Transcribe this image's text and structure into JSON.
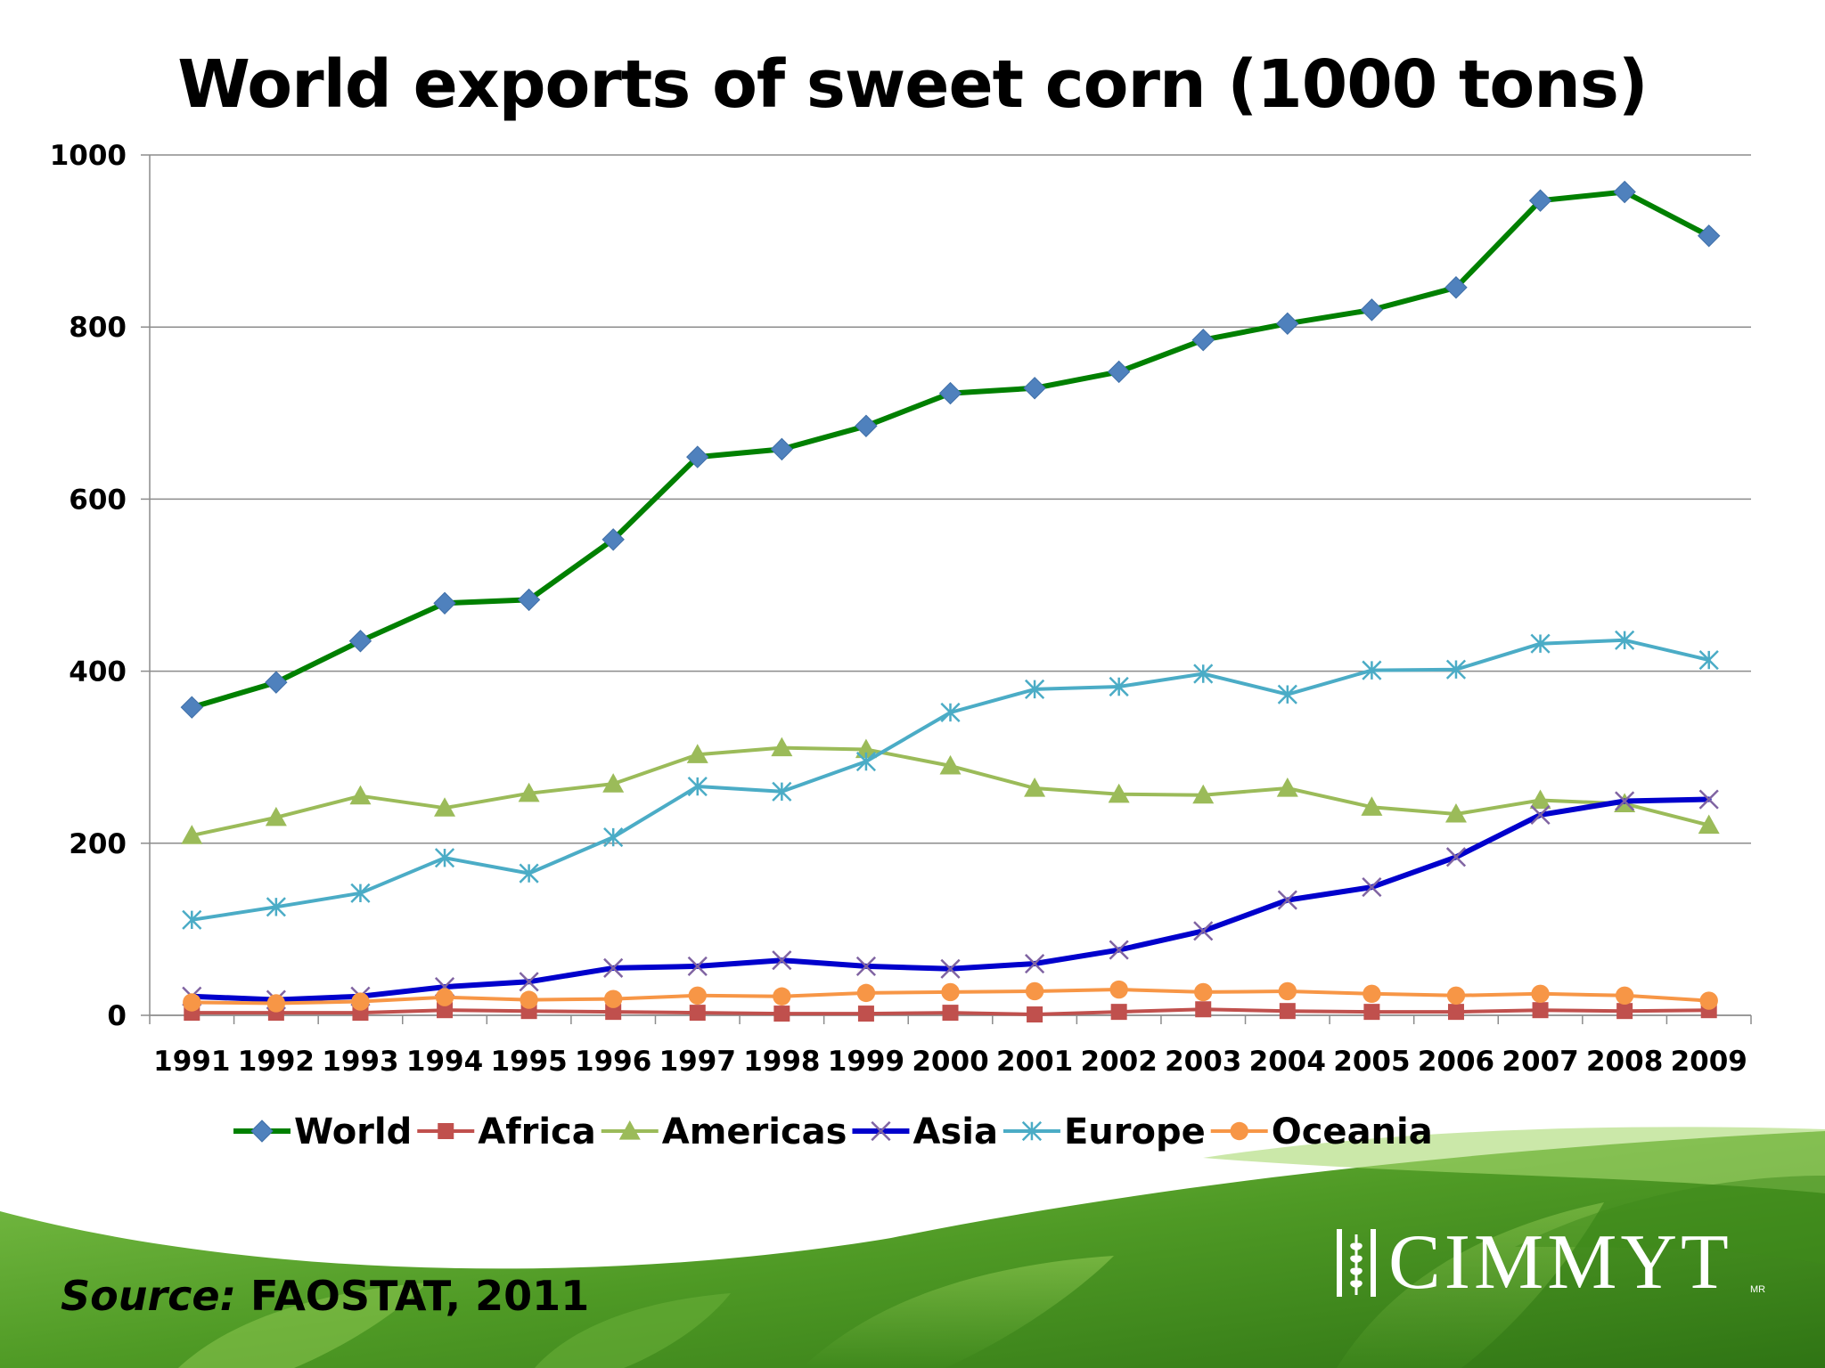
{
  "slide": {
    "title": "World exports of sweet corn (1000 tons)",
    "source_label": "Source:",
    "source_text": "FAOSTAT, 2011",
    "logo_text": "CIMMYT",
    "logo_mark": "MR",
    "colors": {
      "background_green": "#4e9a2a",
      "text": "#000000"
    }
  },
  "chart_data": {
    "type": "line",
    "title": "World exports of sweet corn (1000 tons)",
    "xlabel": "",
    "ylabel": "",
    "ylim": [
      0,
      1000
    ],
    "yticks": [
      0,
      200,
      400,
      600,
      800,
      1000
    ],
    "grid": true,
    "legend_position": "bottom",
    "categories": [
      "1991",
      "1992",
      "1993",
      "1994",
      "1995",
      "1996",
      "1997",
      "1998",
      "1999",
      "2000",
      "2001",
      "2002",
      "2003",
      "2004",
      "2005",
      "2006",
      "2007",
      "2008",
      "2009"
    ],
    "series": [
      {
        "name": "World",
        "color": "#008000",
        "marker": "diamond",
        "marker_color": "#4f81bd",
        "values": [
          358,
          387,
          435,
          479,
          483,
          553,
          649,
          658,
          685,
          723,
          729,
          748,
          785,
          804,
          820,
          846,
          947,
          957,
          906
        ]
      },
      {
        "name": "Africa",
        "color": "#c0504d",
        "marker": "square",
        "marker_color": "#c0504d",
        "values": [
          3,
          3,
          3,
          6,
          5,
          4,
          3,
          2,
          2,
          3,
          1,
          4,
          7,
          5,
          4,
          4,
          6,
          5,
          6
        ]
      },
      {
        "name": "Americas",
        "color": "#9bbb59",
        "marker": "triangle",
        "marker_color": "#9bbb59",
        "values": [
          209,
          230,
          255,
          241,
          258,
          269,
          303,
          311,
          309,
          290,
          264,
          257,
          256,
          264,
          242,
          234,
          250,
          246,
          221
        ]
      },
      {
        "name": "Asia",
        "color": "#0000cc",
        "marker": "x",
        "marker_color": "#8064a2",
        "values": [
          22,
          18,
          22,
          33,
          39,
          55,
          57,
          64,
          57,
          54,
          60,
          76,
          98,
          134,
          149,
          184,
          233,
          249,
          251
        ]
      },
      {
        "name": "Europe",
        "color": "#4bacc6",
        "marker": "star",
        "marker_color": "#4bacc6",
        "values": [
          111,
          126,
          142,
          183,
          165,
          207,
          266,
          260,
          295,
          352,
          379,
          382,
          397,
          373,
          401,
          402,
          432,
          436,
          413
        ]
      },
      {
        "name": "Oceania",
        "color": "#f79646",
        "marker": "circle",
        "marker_color": "#f79646",
        "values": [
          15,
          14,
          16,
          21,
          18,
          19,
          23,
          22,
          26,
          27,
          28,
          30,
          27,
          28,
          25,
          23,
          25,
          23,
          17
        ]
      }
    ]
  }
}
